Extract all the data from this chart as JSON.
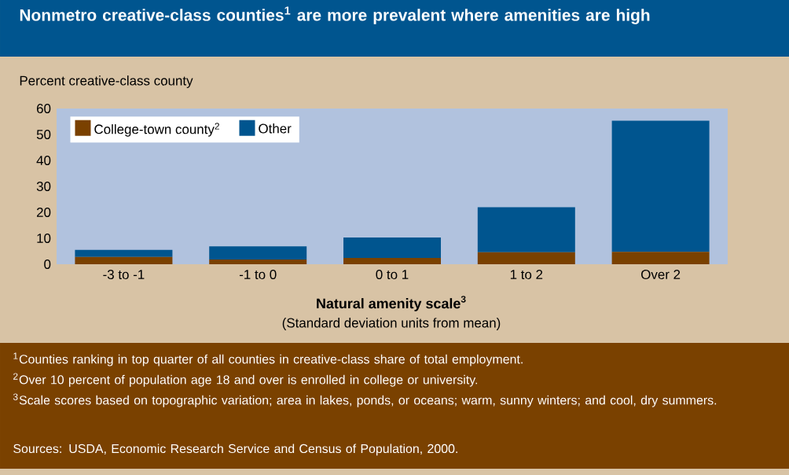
{
  "chart_data": {
    "type": "bar",
    "stacked": true,
    "title": "Nonmetro creative-class counties$^{1}$ are more prevalent where amenities are high",
    "ylabel": "Percent creative-class county",
    "xlabel": "Natural amenity scale$^{3}$",
    "categories": [
      "-3 to -1",
      "-1 to 0",
      "0 to 1",
      "1 to 2",
      "Over 2"
    ],
    "series": [
      {
        "name": "College-town county$^{2}$",
        "color": "#7a4100",
        "values": [
          2.8,
          1.8,
          2.4,
          4.6,
          4.8
        ]
      },
      {
        "name": "Other",
        "color": "#00558f",
        "values": [
          2.7,
          5.1,
          7.9,
          17.4,
          50.5
        ]
      }
    ],
    "ylim": [
      0,
      60
    ],
    "yticks": [
      0,
      10,
      20,
      30,
      40,
      50,
      60
    ],
    "grid": false,
    "legend": "top left",
    "annotations": [
      "(Standard deviation units from mean)",
      "$^{1}$Counties ranking in top quarter of all counties in creative-class share of total employment.",
      "$^{2}$Over 10 percent of population age 18 and over is enrolled in college or university.",
      "$^{3}$Scale scores based on topographic variation; area in lakes, ponds, or oceans; warm, sunny winters; and cool, dry summers.",
      "Sources:  USDA, Economic Research Service and Census of Population, 2000."
    ]
  }
}
